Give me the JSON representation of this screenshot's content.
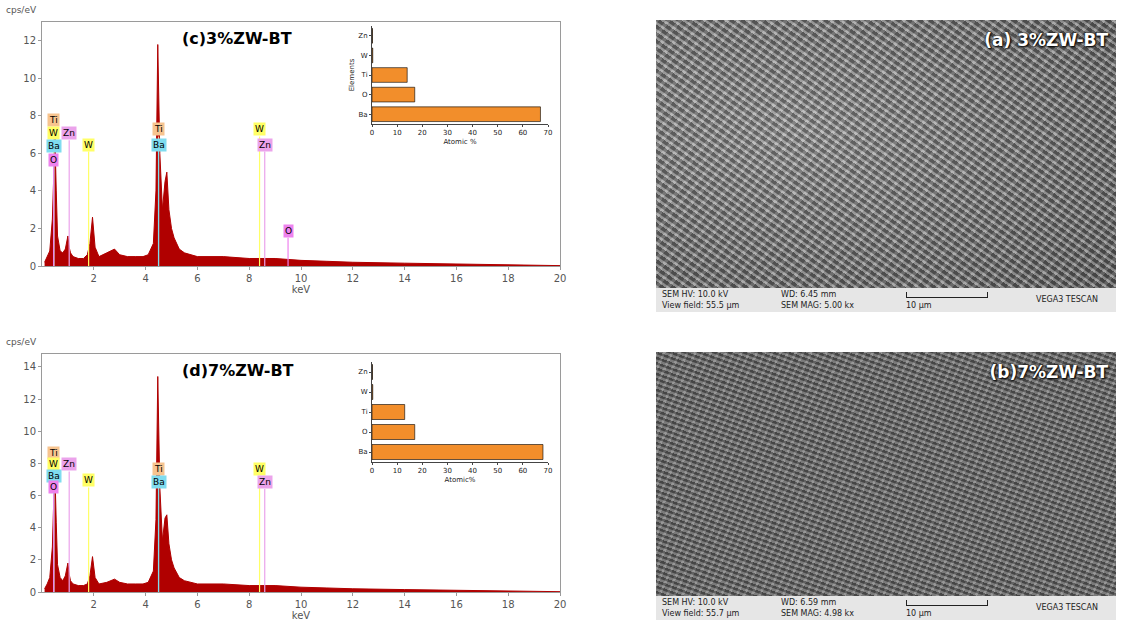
{
  "chart_data": [
    {
      "type": "area",
      "title": "(c)3%ZW-BT",
      "y_label": "cps/eV",
      "x_label": "keV",
      "color": "#b00000",
      "x": [
        0.1,
        0.2,
        0.3,
        0.4,
        0.45,
        0.5,
        0.55,
        0.6,
        0.7,
        0.8,
        0.9,
        1.0,
        1.05,
        1.1,
        1.2,
        1.4,
        1.6,
        1.75,
        1.85,
        1.95,
        2.05,
        2.2,
        2.5,
        2.8,
        3.0,
        3.3,
        3.6,
        3.9,
        4.1,
        4.3,
        4.4,
        4.47,
        4.55,
        4.65,
        4.75,
        4.82,
        4.9,
        5.0,
        5.1,
        5.2,
        5.3,
        5.5,
        5.8,
        6.0,
        7.0,
        8.0,
        9.0,
        10.0,
        11.0,
        12.0,
        14.0,
        16.0,
        18.0,
        20.0
      ],
      "values": [
        0.2,
        0.5,
        0.8,
        2.5,
        5.0,
        6.8,
        4.0,
        1.6,
        0.8,
        0.7,
        0.9,
        1.6,
        1.0,
        0.7,
        0.5,
        0.4,
        0.4,
        0.6,
        1.2,
        2.6,
        1.0,
        0.5,
        0.7,
        0.9,
        0.6,
        0.5,
        0.5,
        0.5,
        0.6,
        1.2,
        4.0,
        11.8,
        6.0,
        3.0,
        4.5,
        5.0,
        3.0,
        2.0,
        1.5,
        1.2,
        0.9,
        0.7,
        0.6,
        0.5,
        0.5,
        0.4,
        0.4,
        0.3,
        0.25,
        0.2,
        0.15,
        0.1,
        0.05,
        0.02
      ],
      "xlim": [
        0,
        20
      ],
      "xticks": [
        2,
        4,
        6,
        8,
        10,
        12,
        14,
        16,
        18,
        20
      ],
      "ylim": [
        0,
        13
      ],
      "yticks": [
        0,
        2,
        4,
        6,
        8,
        10,
        12
      ],
      "grid": false,
      "element_markers": [
        {
          "label": "Ti",
          "x": 0.45,
          "y": 7.4,
          "color": "#f7c48f"
        },
        {
          "label": "W",
          "x": 0.45,
          "y": 6.7,
          "color": "#ffff66"
        },
        {
          "label": "Zn",
          "x": 1.05,
          "y": 6.7,
          "color": "#eba3eb"
        },
        {
          "label": "Ba",
          "x": 0.45,
          "y": 6.0,
          "color": "#7fdcef"
        },
        {
          "label": "O",
          "x": 0.45,
          "y": 5.3,
          "color": "#ee82ee"
        },
        {
          "label": "W",
          "x": 1.8,
          "y": 6.1,
          "color": "#ffff66"
        },
        {
          "label": "Ti",
          "x": 4.5,
          "y": 6.9,
          "color": "#f7c48f"
        },
        {
          "label": "Ba",
          "x": 4.5,
          "y": 6.1,
          "color": "#7fdcef"
        },
        {
          "label": "W",
          "x": 8.4,
          "y": 6.9,
          "color": "#ffff66"
        },
        {
          "label": "Zn",
          "x": 8.6,
          "y": 6.1,
          "color": "#eba3eb"
        },
        {
          "label": "O",
          "x": 9.5,
          "y": 1.5,
          "color": "#ee82ee"
        }
      ]
    },
    {
      "type": "bar",
      "orientation": "horizontal",
      "x_label": "Atomic %",
      "y_label": "Elements",
      "color": "#f28e2b",
      "categories": [
        "Ba",
        "O",
        "Ti",
        "W",
        "Zn"
      ],
      "values": [
        67,
        17,
        14,
        0.3,
        0.2
      ],
      "xlim": [
        0,
        70
      ],
      "xticks": [
        0,
        10,
        20,
        30,
        40,
        50,
        60,
        70
      ]
    },
    {
      "type": "area",
      "title": "(d)7%ZW-BT",
      "y_label": "cps/eV",
      "x_label": "keV",
      "color": "#b00000",
      "x": [
        0.1,
        0.2,
        0.3,
        0.4,
        0.45,
        0.5,
        0.55,
        0.6,
        0.7,
        0.8,
        0.9,
        1.0,
        1.05,
        1.1,
        1.2,
        1.4,
        1.6,
        1.75,
        1.85,
        1.95,
        2.05,
        2.2,
        2.5,
        2.8,
        3.0,
        3.3,
        3.6,
        3.9,
        4.1,
        4.3,
        4.4,
        4.47,
        4.55,
        4.65,
        4.75,
        4.82,
        4.9,
        5.0,
        5.1,
        5.2,
        5.3,
        5.5,
        5.8,
        6.0,
        7.0,
        8.0,
        9.0,
        10.0,
        11.0,
        12.0,
        14.0,
        16.0,
        18.0,
        20.0
      ],
      "values": [
        0.2,
        0.5,
        0.9,
        2.8,
        5.5,
        7.4,
        4.3,
        1.7,
        0.9,
        0.7,
        1.0,
        1.8,
        1.1,
        0.7,
        0.5,
        0.4,
        0.4,
        0.5,
        1.0,
        2.2,
        0.9,
        0.5,
        0.6,
        0.8,
        0.6,
        0.5,
        0.5,
        0.5,
        0.6,
        1.3,
        4.5,
        13.4,
        6.5,
        3.2,
        4.6,
        4.8,
        3.0,
        2.0,
        1.5,
        1.2,
        0.9,
        0.7,
        0.6,
        0.5,
        0.5,
        0.4,
        0.4,
        0.3,
        0.25,
        0.2,
        0.15,
        0.1,
        0.05,
        0.02
      ],
      "xlim": [
        0,
        20
      ],
      "xticks": [
        2,
        4,
        6,
        8,
        10,
        12,
        14,
        16,
        18,
        20
      ],
      "ylim": [
        0,
        14.8
      ],
      "yticks": [
        0,
        2,
        4,
        6,
        8,
        10,
        12,
        14
      ],
      "grid": false,
      "element_markers": [
        {
          "label": "Ti",
          "x": 0.45,
          "y": 8.2,
          "color": "#f7c48f"
        },
        {
          "label": "W",
          "x": 0.45,
          "y": 7.5,
          "color": "#ffff66"
        },
        {
          "label": "Zn",
          "x": 1.05,
          "y": 7.5,
          "color": "#eba3eb"
        },
        {
          "label": "Ba",
          "x": 0.45,
          "y": 6.8,
          "color": "#7fdcef"
        },
        {
          "label": "O",
          "x": 0.45,
          "y": 6.1,
          "color": "#ee82ee"
        },
        {
          "label": "W",
          "x": 1.8,
          "y": 6.5,
          "color": "#ffff66"
        },
        {
          "label": "Ti",
          "x": 4.5,
          "y": 7.2,
          "color": "#f7c48f"
        },
        {
          "label": "Ba",
          "x": 4.5,
          "y": 6.4,
          "color": "#7fdcef"
        },
        {
          "label": "W",
          "x": 8.4,
          "y": 7.2,
          "color": "#ffff66"
        },
        {
          "label": "Zn",
          "x": 8.6,
          "y": 6.4,
          "color": "#eba3eb"
        }
      ]
    },
    {
      "type": "bar",
      "orientation": "horizontal",
      "x_label": "Atomic%",
      "color": "#f28e2b",
      "categories": [
        "Ba",
        "O",
        "Ti",
        "W",
        "Zn"
      ],
      "values": [
        68,
        17,
        13,
        0.3,
        0.2
      ],
      "xlim": [
        0,
        70
      ],
      "xticks": [
        0,
        10,
        20,
        30,
        40,
        50,
        60,
        70
      ]
    }
  ],
  "sem_images": [
    {
      "label": "(a) 3%ZW-BT",
      "hv": "SEM HV: 10.0 kV",
      "wd": "WD: 6.45 mm",
      "view_field": "View field: 55.5 μm",
      "mag": "SEM MAG: 5.00 kx",
      "scale_bar": "10 μm",
      "brand": "VEGA3 TESCAN"
    },
    {
      "label": "(b)7%ZW-BT",
      "hv": "SEM HV: 10.0 kV",
      "wd": "WD: 6.59 mm",
      "view_field": "View field: 55.7 μm",
      "mag": "SEM MAG: 4.98 kx",
      "scale_bar": "10 μm",
      "brand": "VEGA3 TESCAN"
    }
  ]
}
